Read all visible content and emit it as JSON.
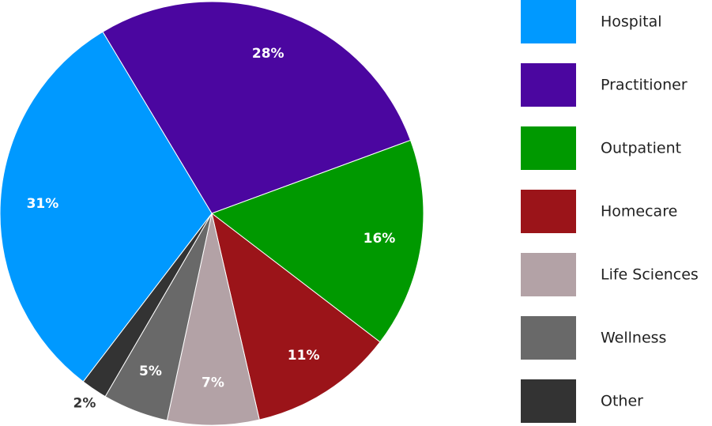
{
  "chart_data": {
    "type": "pie",
    "categories": [
      "Hospital",
      "Practitioner",
      "Outpatient",
      "Homecare",
      "Life Sciences",
      "Wellness",
      "Other"
    ],
    "values": [
      31,
      28,
      16,
      11,
      7,
      5,
      2
    ],
    "value_labels": [
      "31%",
      "28%",
      "16%",
      "11%",
      "7%",
      "5%",
      "2%"
    ],
    "colors": [
      "#0099ff",
      "#4b06a0",
      "#009900",
      "#9b1419",
      "#b3a2a6",
      "#696969",
      "#333333"
    ]
  }
}
